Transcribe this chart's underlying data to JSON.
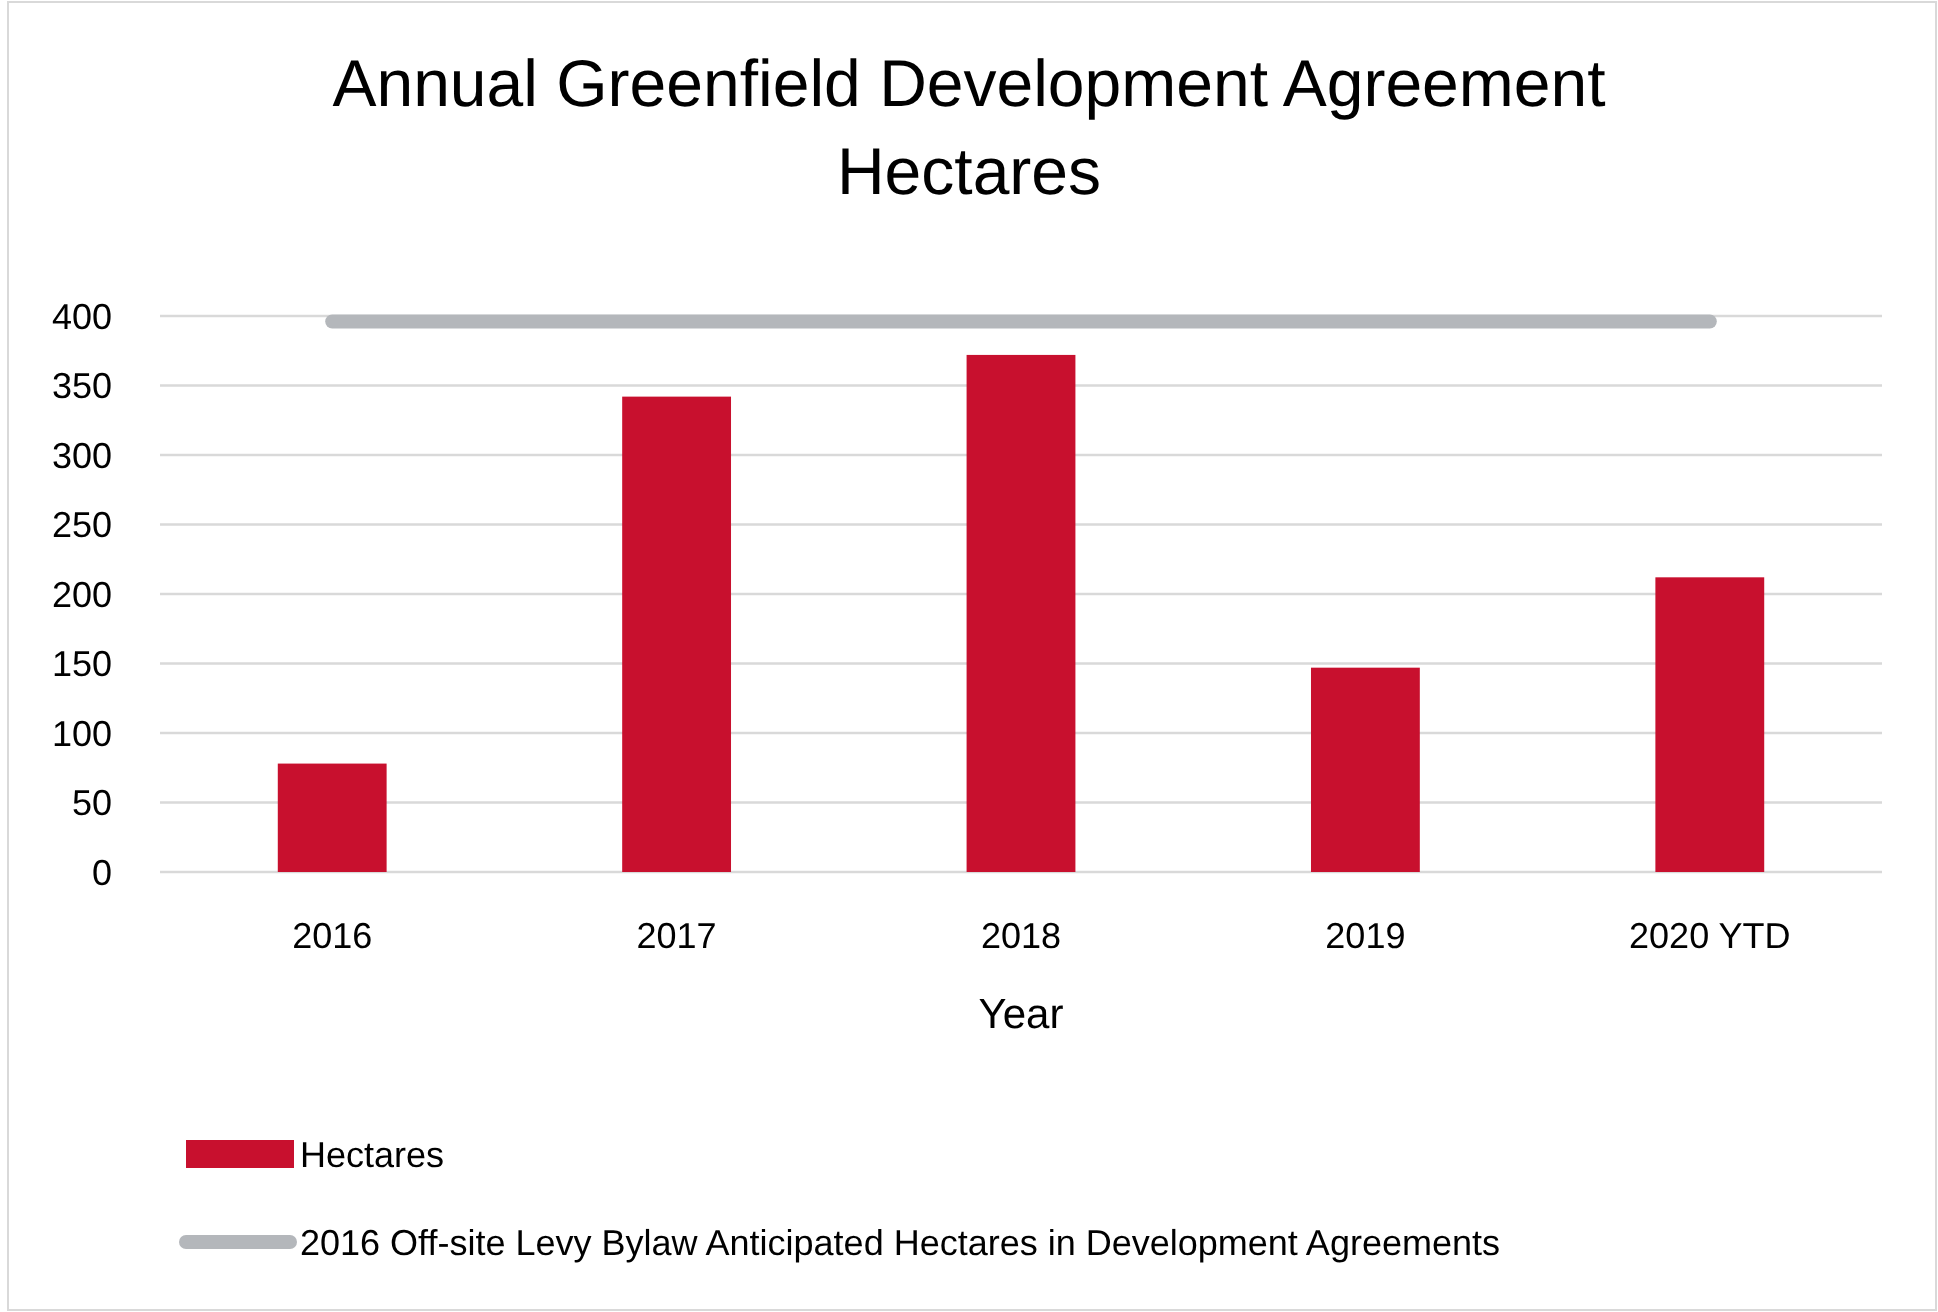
{
  "chart_data": {
    "type": "bar",
    "title": "Annual Greenfield Development Agreement Hectares",
    "xlabel": "Year",
    "categories": [
      "2016",
      "2017",
      "2018",
      "2019",
      "2020 YTD"
    ],
    "series": [
      {
        "name": "Hectares",
        "color": "#c8102e",
        "values": [
          78,
          342,
          372,
          147,
          212
        ]
      },
      {
        "name": "2016 Off-site Levy Bylaw Anticipated Hectares in Development Agreements",
        "type": "line",
        "color": "#b4b7bb",
        "values": [
          396,
          396,
          396,
          396,
          396
        ]
      }
    ],
    "ylim": [
      0,
      400
    ],
    "yticks": [
      0,
      50,
      100,
      150,
      200,
      250,
      300,
      350,
      400
    ],
    "grid": "y",
    "legend": "bottom"
  }
}
